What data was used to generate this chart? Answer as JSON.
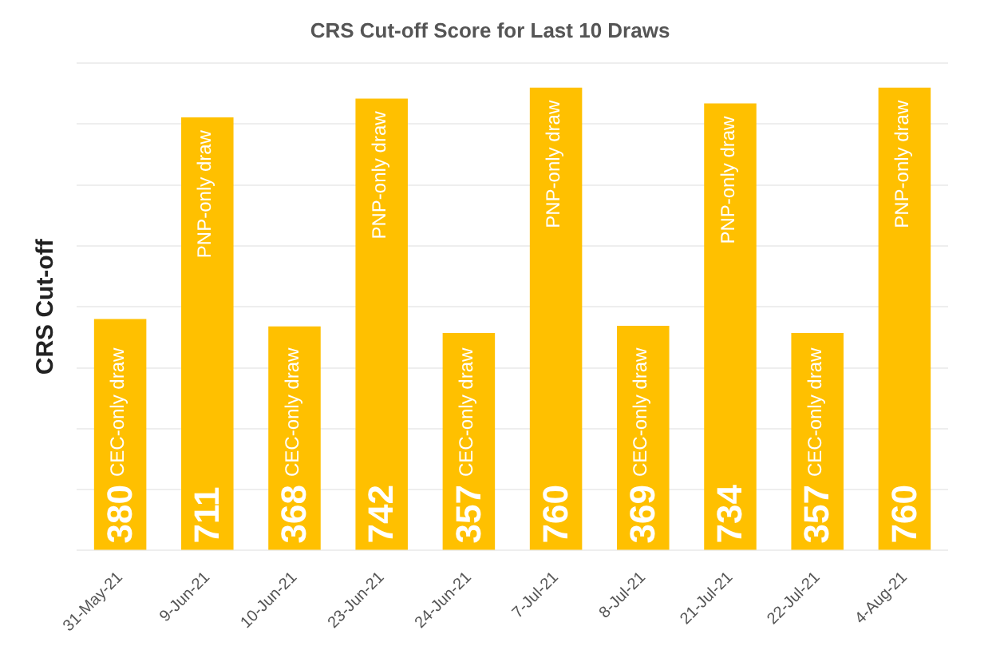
{
  "chart_data": {
    "type": "bar",
    "title": "CRS Cut-off Score for Last 10 Draws",
    "ylabel": "CRS Cut-off",
    "categories": [
      "31-May-21",
      "9-Jun-21",
      "10-Jun-21",
      "23-Jun-21",
      "24-Jun-21",
      "7-Jul-21",
      "8-Jul-21",
      "21-Jul-21",
      "22-Jul-21",
      "4-Aug-21"
    ],
    "values": [
      380,
      711,
      368,
      742,
      357,
      760,
      369,
      734,
      357,
      760
    ],
    "color": "#ffc000",
    "ylim": [
      0,
      800
    ],
    "yticks": [
      {
        "value": 0,
        "label": null
      },
      {
        "value": 100,
        "label": null
      },
      {
        "value": 200,
        "label": null
      },
      {
        "value": 300,
        "label": null
      },
      {
        "value": 400,
        "label": null
      },
      {
        "value": 500,
        "label": null
      },
      {
        "value": 600,
        "label": null
      },
      {
        "value": 700,
        "label": null
      },
      {
        "value": 800,
        "label": null
      }
    ],
    "tick_labels": "x",
    "grid": "y",
    "data_labels": true,
    "annotations": [
      {
        "text": "CEC-only draw",
        "x": "31-May-21"
      },
      {
        "text": "PNP-only draw",
        "x": "9-Jun-21"
      },
      {
        "text": "CEC-only draw",
        "x": "10-Jun-21"
      },
      {
        "text": "PNP-only draw",
        "x": "23-Jun-21"
      },
      {
        "text": "CEC-only draw",
        "x": "24-Jun-21"
      },
      {
        "text": "PNP-only draw",
        "x": "7-Jul-21"
      },
      {
        "text": "CEC-only draw",
        "x": "8-Jul-21"
      },
      {
        "text": "PNP-only draw",
        "x": "21-Jul-21"
      },
      {
        "text": "CEC-only draw",
        "x": "22-Jul-21"
      },
      {
        "text": "PNP-only draw",
        "x": "4-Aug-21"
      }
    ]
  }
}
